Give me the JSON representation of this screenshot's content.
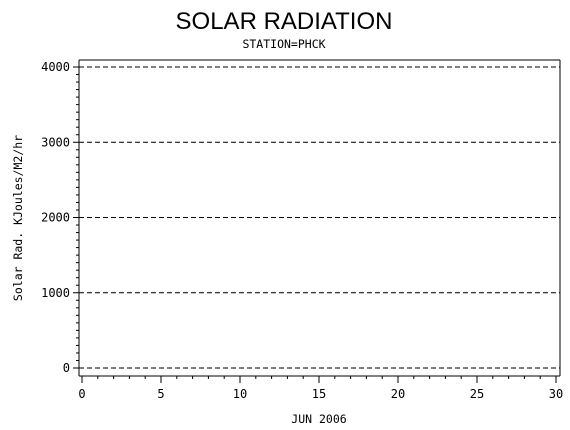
{
  "chart_data": {
    "type": "line",
    "title": "SOLAR RADIATION",
    "subtitle": "STATION=PHCK",
    "xlabel": "JUN 2006",
    "ylabel": "Solar Rad. KJoules/M2/hr",
    "xlim": [
      0,
      30
    ],
    "ylim": [
      0,
      4000
    ],
    "x_ticks": [
      0,
      5,
      10,
      15,
      20,
      25,
      30
    ],
    "y_ticks": [
      0,
      1000,
      2000,
      3000,
      4000
    ],
    "grid": "horizontal dashed",
    "series": []
  }
}
